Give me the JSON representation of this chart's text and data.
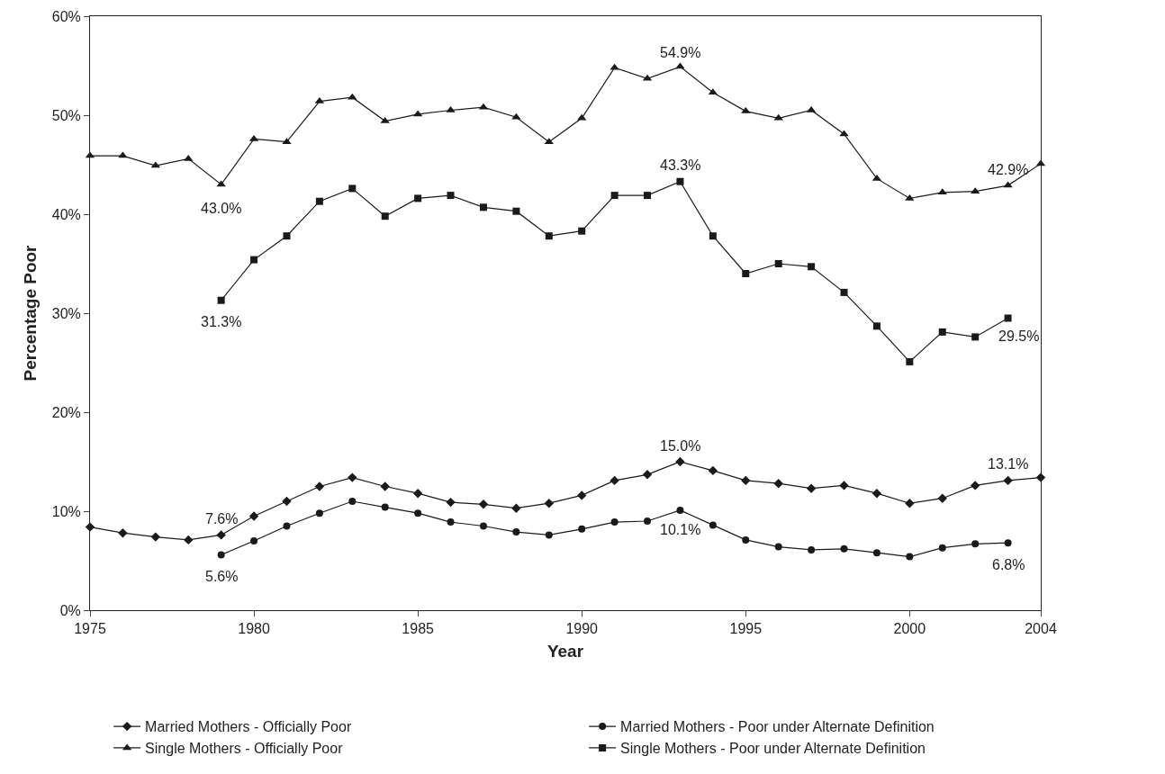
{
  "chart_data": {
    "type": "line",
    "xlabel": "Year",
    "ylabel": "Percentage Poor",
    "xlim": [
      1975,
      2004
    ],
    "xticks": [
      1975,
      1980,
      1985,
      1990,
      1995,
      2000,
      2004
    ],
    "ylim": [
      0,
      60
    ],
    "yticks": [
      {
        "value": 0,
        "label": "0%"
      },
      {
        "value": 10,
        "label": "10%"
      },
      {
        "value": 20,
        "label": "20%"
      },
      {
        "value": 30,
        "label": "30%"
      },
      {
        "value": 40,
        "label": "40%"
      },
      {
        "value": 50,
        "label": "50%"
      },
      {
        "value": 60,
        "label": "60%"
      }
    ],
    "grid": false,
    "legend": "bottom",
    "line_style": "solid",
    "series": [
      {
        "name": "Married Mothers - Officially Poor",
        "color": "#1a1a1a",
        "marker": "diamond",
        "x": [
          1975,
          1976,
          1977,
          1978,
          1979,
          1980,
          1981,
          1982,
          1983,
          1984,
          1985,
          1986,
          1987,
          1988,
          1989,
          1990,
          1991,
          1992,
          1993,
          1994,
          1995,
          1996,
          1997,
          1998,
          1999,
          2000,
          2001,
          2002,
          2003,
          2004
        ],
        "values": [
          8.4,
          7.8,
          7.4,
          7.1,
          7.6,
          9.5,
          11.0,
          12.5,
          13.4,
          12.5,
          11.8,
          10.9,
          10.7,
          10.3,
          10.8,
          11.6,
          13.1,
          13.7,
          15.0,
          14.1,
          13.1,
          12.8,
          12.3,
          12.6,
          11.8,
          10.8,
          11.3,
          12.6,
          13.1,
          13.4
        ]
      },
      {
        "name": "Married Mothers - Poor under Alternate Definition",
        "color": "#1a1a1a",
        "marker": "circle",
        "x": [
          1979,
          1980,
          1981,
          1982,
          1983,
          1984,
          1985,
          1986,
          1987,
          1988,
          1989,
          1990,
          1991,
          1992,
          1993,
          1994,
          1995,
          1996,
          1997,
          1998,
          1999,
          2000,
          2001,
          2002,
          2003
        ],
        "values": [
          5.6,
          7.0,
          8.5,
          9.8,
          11.0,
          10.4,
          9.8,
          8.9,
          8.5,
          7.9,
          7.6,
          8.2,
          8.9,
          9.0,
          10.1,
          8.6,
          7.1,
          6.4,
          6.1,
          6.2,
          5.8,
          5.4,
          6.3,
          6.7,
          6.8
        ]
      },
      {
        "name": "Single Mothers - Officially Poor",
        "color": "#1a1a1a",
        "marker": "triangle",
        "x": [
          1975,
          1976,
          1977,
          1978,
          1979,
          1980,
          1981,
          1982,
          1983,
          1984,
          1985,
          1986,
          1987,
          1988,
          1989,
          1990,
          1991,
          1992,
          1993,
          1994,
          1995,
          1996,
          1997,
          1998,
          1999,
          2000,
          2001,
          2002,
          2003,
          2004
        ],
        "values": [
          45.9,
          45.9,
          44.9,
          45.6,
          43.0,
          47.6,
          47.3,
          51.4,
          51.8,
          49.4,
          50.1,
          50.5,
          50.8,
          49.8,
          47.3,
          49.7,
          54.8,
          53.7,
          54.9,
          52.3,
          50.4,
          49.7,
          50.5,
          48.1,
          43.6,
          41.6,
          42.2,
          42.3,
          42.9,
          45.1
        ]
      },
      {
        "name": "Single Mothers - Poor under Alternate Definition",
        "color": "#1a1a1a",
        "marker": "square",
        "x": [
          1979,
          1980,
          1981,
          1982,
          1983,
          1984,
          1985,
          1986,
          1987,
          1988,
          1989,
          1990,
          1991,
          1992,
          1993,
          1994,
          1995,
          1996,
          1997,
          1998,
          1999,
          2000,
          2001,
          2002,
          2003
        ],
        "values": [
          31.3,
          35.4,
          37.8,
          41.3,
          42.6,
          39.8,
          41.6,
          41.9,
          40.7,
          40.3,
          37.8,
          38.3,
          41.9,
          41.9,
          43.3,
          37.8,
          34.0,
          35.0,
          34.7,
          32.1,
          28.7,
          25.1,
          28.1,
          27.6,
          29.5
        ]
      }
    ],
    "annotations": [
      {
        "text": "54.9%",
        "x": 1993,
        "y": 54.9
      },
      {
        "text": "43.0%",
        "x": 1979,
        "y": 43.0
      },
      {
        "text": "43.3%",
        "x": 1993,
        "y": 43.3
      },
      {
        "text": "31.3%",
        "x": 1979,
        "y": 31.3
      },
      {
        "text": "42.9%",
        "x": 2003,
        "y": 42.9
      },
      {
        "text": "29.5%",
        "x": 2003,
        "y": 29.5
      },
      {
        "text": "15.0%",
        "x": 1993,
        "y": 15.0
      },
      {
        "text": "7.6%",
        "x": 1979,
        "y": 7.6
      },
      {
        "text": "13.1%",
        "x": 2003,
        "y": 13.1
      },
      {
        "text": "10.1%",
        "x": 1993,
        "y": 10.1
      },
      {
        "text": "5.6%",
        "x": 1979,
        "y": 5.6
      },
      {
        "text": "6.8%",
        "x": 2003,
        "y": 6.8
      }
    ]
  }
}
